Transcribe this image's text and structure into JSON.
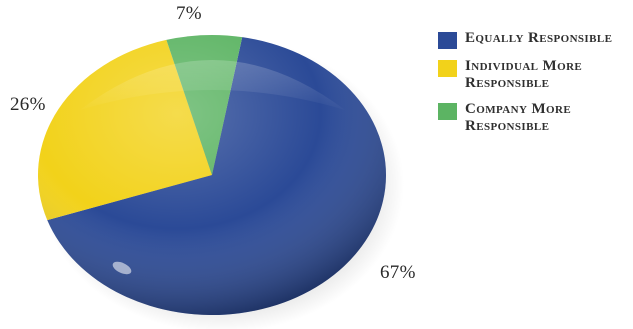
{
  "chart_data": {
    "type": "pie",
    "title": "",
    "series": [
      {
        "name": "Equally Responsible",
        "value": 67,
        "label": "67%",
        "color": "#2b4a97"
      },
      {
        "name": "Individual More Responsible",
        "value": 26,
        "label": "26%",
        "color": "#f2d21a"
      },
      {
        "name": "Company More Responsible",
        "value": 7,
        "label": "7%",
        "color": "#5cb463"
      }
    ],
    "legend_position": "right"
  }
}
